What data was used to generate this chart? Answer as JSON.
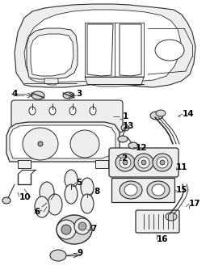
{
  "bg_color": "#ffffff",
  "lc": "#2a2a2a",
  "gray_fill": "#d8d8d8",
  "dark_fill": "#aaaaaa",
  "light_fill": "#eeeeee"
}
